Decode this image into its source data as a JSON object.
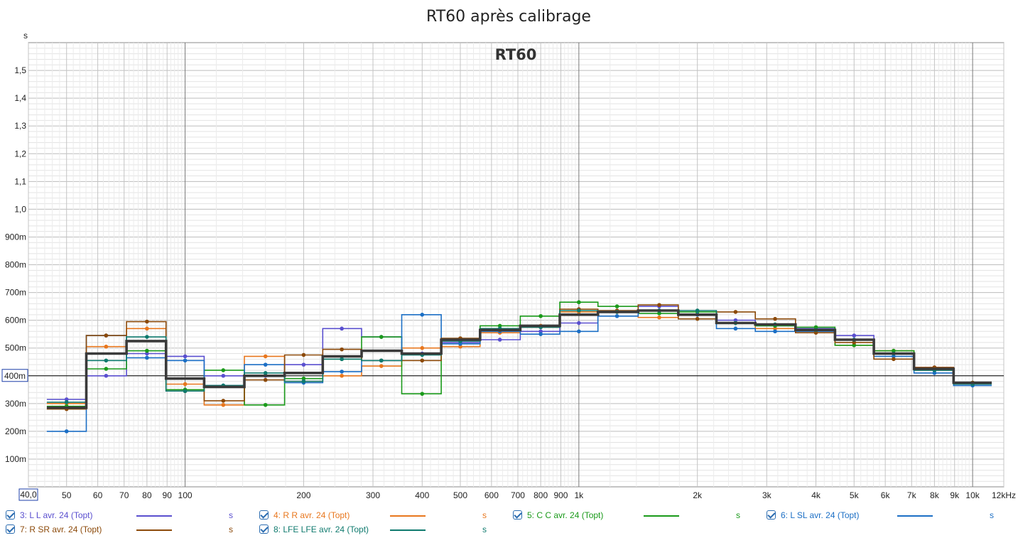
{
  "chart_data": {
    "type": "line",
    "title": "RT60 après calibrage",
    "inner_title": "RT60",
    "y_unit": "s",
    "xscale": "log",
    "xlim": [
      40,
      12000
    ],
    "ylim": [
      0,
      1.6
    ],
    "x_tick_labels": [
      {
        "v": 40,
        "t": "40,0"
      },
      {
        "v": 50,
        "t": "50"
      },
      {
        "v": 60,
        "t": "60"
      },
      {
        "v": 70,
        "t": "70"
      },
      {
        "v": 80,
        "t": "80"
      },
      {
        "v": 90,
        "t": "90"
      },
      {
        "v": 100,
        "t": "100"
      },
      {
        "v": 200,
        "t": "200"
      },
      {
        "v": 300,
        "t": "300"
      },
      {
        "v": 400,
        "t": "400"
      },
      {
        "v": 500,
        "t": "500"
      },
      {
        "v": 600,
        "t": "600"
      },
      {
        "v": 700,
        "t": "700"
      },
      {
        "v": 800,
        "t": "800"
      },
      {
        "v": 900,
        "t": "900"
      },
      {
        "v": 1000,
        "t": "1k"
      },
      {
        "v": 2000,
        "t": "2k"
      },
      {
        "v": 3000,
        "t": "3k"
      },
      {
        "v": 4000,
        "t": "4k"
      },
      {
        "v": 5000,
        "t": "5k"
      },
      {
        "v": 6000,
        "t": "6k"
      },
      {
        "v": 7000,
        "t": "7k"
      },
      {
        "v": 8000,
        "t": "8k"
      },
      {
        "v": 9000,
        "t": "9k"
      },
      {
        "v": 10000,
        "t": "10k"
      },
      {
        "v": 12000,
        "t": "12kHz"
      }
    ],
    "y_tick_labels": [
      {
        "v": 0.1,
        "t": "100m"
      },
      {
        "v": 0.2,
        "t": "200m"
      },
      {
        "v": 0.3,
        "t": "300m"
      },
      {
        "v": 0.4,
        "t": "400m"
      },
      {
        "v": 0.5,
        "t": "500m"
      },
      {
        "v": 0.6,
        "t": "600m"
      },
      {
        "v": 0.7,
        "t": "700m"
      },
      {
        "v": 0.8,
        "t": "800m"
      },
      {
        "v": 0.9,
        "t": "900m"
      },
      {
        "v": 1.0,
        "t": "1,0"
      },
      {
        "v": 1.1,
        "t": "1,1"
      },
      {
        "v": 1.2,
        "t": "1,2"
      },
      {
        "v": 1.3,
        "t": "1,3"
      },
      {
        "v": 1.4,
        "t": "1,4"
      },
      {
        "v": 1.5,
        "t": "1,5"
      }
    ],
    "reference_line": {
      "value": 0.4,
      "label": "400m"
    },
    "x": [
      50,
      63,
      80,
      100,
      125,
      160,
      200,
      250,
      315,
      400,
      500,
      630,
      800,
      1000,
      1250,
      1600,
      2000,
      2500,
      3150,
      4000,
      5000,
      6300,
      8000,
      10000
    ],
    "series": [
      {
        "name": "3: L L avr. 24 (Topt)",
        "color": "#5a4fcf",
        "values": [
          0.315,
          0.4,
          0.48,
          0.47,
          0.4,
          0.4,
          0.44,
          0.57,
          0.54,
          0.48,
          0.52,
          0.53,
          0.56,
          0.59,
          0.63,
          0.65,
          0.62,
          0.6,
          0.58,
          0.57,
          0.545,
          0.48,
          0.43,
          0.375
        ]
      },
      {
        "name": "4: R R avr. 24 (Topt)",
        "color": "#e8771e",
        "values": [
          0.3,
          0.505,
          0.57,
          0.37,
          0.295,
          0.47,
          0.38,
          0.4,
          0.435,
          0.5,
          0.505,
          0.555,
          0.58,
          0.63,
          0.63,
          0.61,
          0.62,
          0.59,
          0.57,
          0.565,
          0.51,
          0.49,
          0.43,
          0.375
        ]
      },
      {
        "name": "5: C C avr. 24 (Topt)",
        "color": "#1a9a1a",
        "values": [
          0.29,
          0.425,
          0.49,
          0.35,
          0.42,
          0.295,
          0.39,
          0.46,
          0.54,
          0.335,
          0.53,
          0.58,
          0.615,
          0.665,
          0.65,
          0.625,
          0.63,
          0.59,
          0.58,
          0.575,
          0.51,
          0.49,
          0.42,
          0.375
        ]
      },
      {
        "name": "6: L SL avr. 24 (Topt)",
        "color": "#1c6fc5",
        "values": [
          0.2,
          0.545,
          0.465,
          0.455,
          0.365,
          0.44,
          0.375,
          0.415,
          0.455,
          0.62,
          0.515,
          0.56,
          0.55,
          0.56,
          0.615,
          0.635,
          0.62,
          0.57,
          0.56,
          0.56,
          0.53,
          0.47,
          0.41,
          0.365
        ]
      },
      {
        "name": "7: R SR avr. 24 (Topt)",
        "color": "#8c4a0a",
        "values": [
          0.28,
          0.545,
          0.595,
          0.345,
          0.31,
          0.385,
          0.475,
          0.495,
          0.455,
          0.455,
          0.535,
          0.565,
          0.575,
          0.64,
          0.635,
          0.655,
          0.605,
          0.63,
          0.605,
          0.555,
          0.52,
          0.46,
          0.43,
          0.375
        ]
      },
      {
        "name": "8: LFE LFE avr. 24 (Topt)",
        "color": "#0f7a6e",
        "values": [
          0.305,
          0.455,
          0.54,
          0.345,
          0.365,
          0.41,
          0.38,
          0.46,
          0.455,
          0.475,
          0.525,
          0.57,
          0.575,
          0.635,
          0.63,
          0.635,
          0.635,
          0.59,
          0.585,
          0.565,
          0.53,
          0.48,
          0.42,
          0.37
        ]
      }
    ],
    "average": {
      "color": "#3a3a3a",
      "values": [
        0.285,
        0.48,
        0.525,
        0.39,
        0.36,
        0.4,
        0.41,
        0.47,
        0.49,
        0.48,
        0.53,
        0.565,
        0.58,
        0.62,
        0.63,
        0.635,
        0.62,
        0.59,
        0.585,
        0.565,
        0.53,
        0.48,
        0.425,
        0.375
      ]
    }
  },
  "legend": {
    "items": [
      {
        "label": "3: L L avr. 24 (Topt)",
        "unit": "s",
        "color": "#5a4fcf"
      },
      {
        "label": "4: R R avr. 24 (Topt)",
        "unit": "s",
        "color": "#e8771e"
      },
      {
        "label": "5: C C avr. 24 (Topt)",
        "unit": "s",
        "color": "#1a9a1a"
      },
      {
        "label": "6: L SL avr. 24 (Topt)",
        "unit": "s",
        "color": "#1c6fc5"
      },
      {
        "label": "7: R SR avr. 24 (Topt)",
        "unit": "s",
        "color": "#8c4a0a"
      },
      {
        "label": "8: LFE LFE avr. 24 (Topt)",
        "unit": "s",
        "color": "#0f7a6e"
      }
    ]
  }
}
